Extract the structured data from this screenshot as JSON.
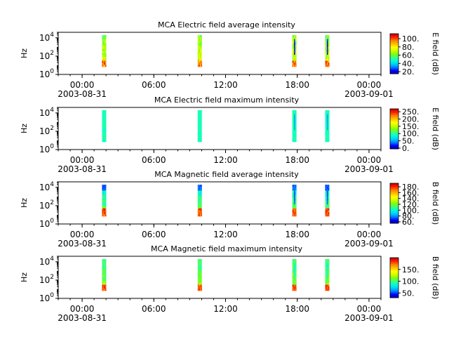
{
  "chart_data": [
    {
      "type": "heatmap",
      "title": "MCA  Electric field average intensity",
      "ylabel": "Hz",
      "y_scale": "log",
      "ylim": [
        1,
        40000
      ],
      "y_ticks": [
        {
          "value": 1,
          "base": "10",
          "exp": "0"
        },
        {
          "value": 100,
          "base": "10",
          "exp": "2"
        },
        {
          "value": 10000,
          "base": "10",
          "exp": "4"
        }
      ],
      "xlim": [
        "2003-08-30T22:00",
        "2003-09-01T01:00"
      ],
      "x_ticks": [
        {
          "time": "2003-08-31T00:00",
          "label": "00:00",
          "date": "2003-08-31"
        },
        {
          "time": "2003-08-31T06:00",
          "label": "06:00"
        },
        {
          "time": "2003-08-31T12:00",
          "label": "12:00"
        },
        {
          "time": "2003-08-31T18:00",
          "label": "18:00"
        },
        {
          "time": "2003-09-01T00:00",
          "label": "00:00",
          "date": "2003-09-01"
        }
      ],
      "colorbar_label": "E field (dB)",
      "colorbar_range": [
        15,
        112
      ],
      "colorbar_ticks": [
        "20.",
        "40.",
        "60.",
        "80.",
        "100."
      ],
      "colorbar_tick_values": [
        20,
        40,
        60,
        80,
        100
      ],
      "intervals": [
        [
          "2003-08-31T01:40",
          "2003-08-31T02:00"
        ],
        [
          "2003-08-31T09:40",
          "2003-08-31T10:00"
        ],
        [
          "2003-08-31T17:35",
          "2003-08-31T17:55"
        ],
        [
          "2003-08-31T20:20",
          "2003-08-31T20:40"
        ]
      ],
      "profile": "avgE"
    },
    {
      "type": "heatmap",
      "title": "MCA  Electric field maximum intensity",
      "ylabel": "Hz",
      "y_scale": "log",
      "ylim": [
        1,
        40000
      ],
      "y_ticks": [
        {
          "value": 1,
          "base": "10",
          "exp": "0"
        },
        {
          "value": 100,
          "base": "10",
          "exp": "2"
        },
        {
          "value": 10000,
          "base": "10",
          "exp": "4"
        }
      ],
      "xlim": [
        "2003-08-30T22:00",
        "2003-09-01T01:00"
      ],
      "x_ticks": [
        {
          "time": "2003-08-31T00:00",
          "label": "00:00",
          "date": "2003-08-31"
        },
        {
          "time": "2003-08-31T06:00",
          "label": "06:00"
        },
        {
          "time": "2003-08-31T12:00",
          "label": "12:00"
        },
        {
          "time": "2003-08-31T18:00",
          "label": "18:00"
        },
        {
          "time": "2003-09-01T00:00",
          "label": "00:00",
          "date": "2003-09-01"
        }
      ],
      "colorbar_label": "E field (dB)",
      "colorbar_range": [
        -5,
        270
      ],
      "colorbar_ticks": [
        "0.",
        "50.",
        "100.",
        "150.",
        "200.",
        "250."
      ],
      "colorbar_tick_values": [
        0,
        50,
        100,
        150,
        200,
        250
      ],
      "intervals": [
        [
          "2003-08-31T01:40",
          "2003-08-31T02:00"
        ],
        [
          "2003-08-31T09:40",
          "2003-08-31T10:00"
        ],
        [
          "2003-08-31T17:35",
          "2003-08-31T17:55"
        ],
        [
          "2003-08-31T20:20",
          "2003-08-31T20:40"
        ]
      ],
      "profile": "maxE"
    },
    {
      "type": "heatmap",
      "title": "MCA  Magnetic field average intensity",
      "ylabel": "Hz",
      "y_scale": "log",
      "ylim": [
        1,
        40000
      ],
      "y_ticks": [
        {
          "value": 1,
          "base": "10",
          "exp": "0"
        },
        {
          "value": 100,
          "base": "10",
          "exp": "2"
        },
        {
          "value": 10000,
          "base": "10",
          "exp": "4"
        }
      ],
      "xlim": [
        "2003-08-30T22:00",
        "2003-09-01T01:00"
      ],
      "x_ticks": [
        {
          "time": "2003-08-31T00:00",
          "label": "00:00",
          "date": "2003-08-31"
        },
        {
          "time": "2003-08-31T06:00",
          "label": "06:00"
        },
        {
          "time": "2003-08-31T12:00",
          "label": "12:00"
        },
        {
          "time": "2003-08-31T18:00",
          "label": "18:00"
        },
        {
          "time": "2003-09-01T00:00",
          "label": "00:00",
          "date": "2003-09-01"
        }
      ],
      "colorbar_label": "B field (dB)",
      "colorbar_range": [
        55,
        192
      ],
      "colorbar_ticks": [
        "60.",
        "80.",
        "100.",
        "120.",
        "140.",
        "160.",
        "180."
      ],
      "colorbar_tick_values": [
        60,
        80,
        100,
        120,
        140,
        160,
        180
      ],
      "intervals": [
        [
          "2003-08-31T01:40",
          "2003-08-31T02:00"
        ],
        [
          "2003-08-31T09:40",
          "2003-08-31T10:00"
        ],
        [
          "2003-08-31T17:35",
          "2003-08-31T17:55"
        ],
        [
          "2003-08-31T20:20",
          "2003-08-31T20:40"
        ]
      ],
      "profile": "avgB"
    },
    {
      "type": "heatmap",
      "title": "MCA  Magnetic field maximum intensity",
      "ylabel": "Hz",
      "y_scale": "log",
      "ylim": [
        1,
        40000
      ],
      "y_ticks": [
        {
          "value": 1,
          "base": "10",
          "exp": "0"
        },
        {
          "value": 100,
          "base": "10",
          "exp": "2"
        },
        {
          "value": 10000,
          "base": "10",
          "exp": "4"
        }
      ],
      "xlim": [
        "2003-08-30T22:00",
        "2003-09-01T01:00"
      ],
      "x_ticks": [
        {
          "time": "2003-08-31T00:00",
          "label": "00:00",
          "date": "2003-08-31"
        },
        {
          "time": "2003-08-31T06:00",
          "label": "06:00"
        },
        {
          "time": "2003-08-31T12:00",
          "label": "12:00"
        },
        {
          "time": "2003-08-31T18:00",
          "label": "18:00"
        },
        {
          "time": "2003-09-01T00:00",
          "label": "00:00",
          "date": "2003-09-01"
        }
      ],
      "colorbar_label": "B field (dB)",
      "colorbar_range": [
        30,
        200
      ],
      "colorbar_ticks": [
        "50.",
        "100.",
        "150."
      ],
      "colorbar_tick_values": [
        50,
        100,
        150
      ],
      "intervals": [
        [
          "2003-08-31T01:40",
          "2003-08-31T02:00"
        ],
        [
          "2003-08-31T09:40",
          "2003-08-31T10:00"
        ],
        [
          "2003-08-31T17:35",
          "2003-08-31T17:55"
        ],
        [
          "2003-08-31T20:20",
          "2003-08-31T20:40"
        ]
      ],
      "profile": "maxB"
    }
  ],
  "colormap": [
    "#0000a0",
    "#0000ff",
    "#0080ff",
    "#00d0ff",
    "#00ffd0",
    "#40ff80",
    "#80ff00",
    "#d0ff00",
    "#ffff00",
    "#ffc000",
    "#ff8000",
    "#ff2000",
    "#c00000"
  ]
}
